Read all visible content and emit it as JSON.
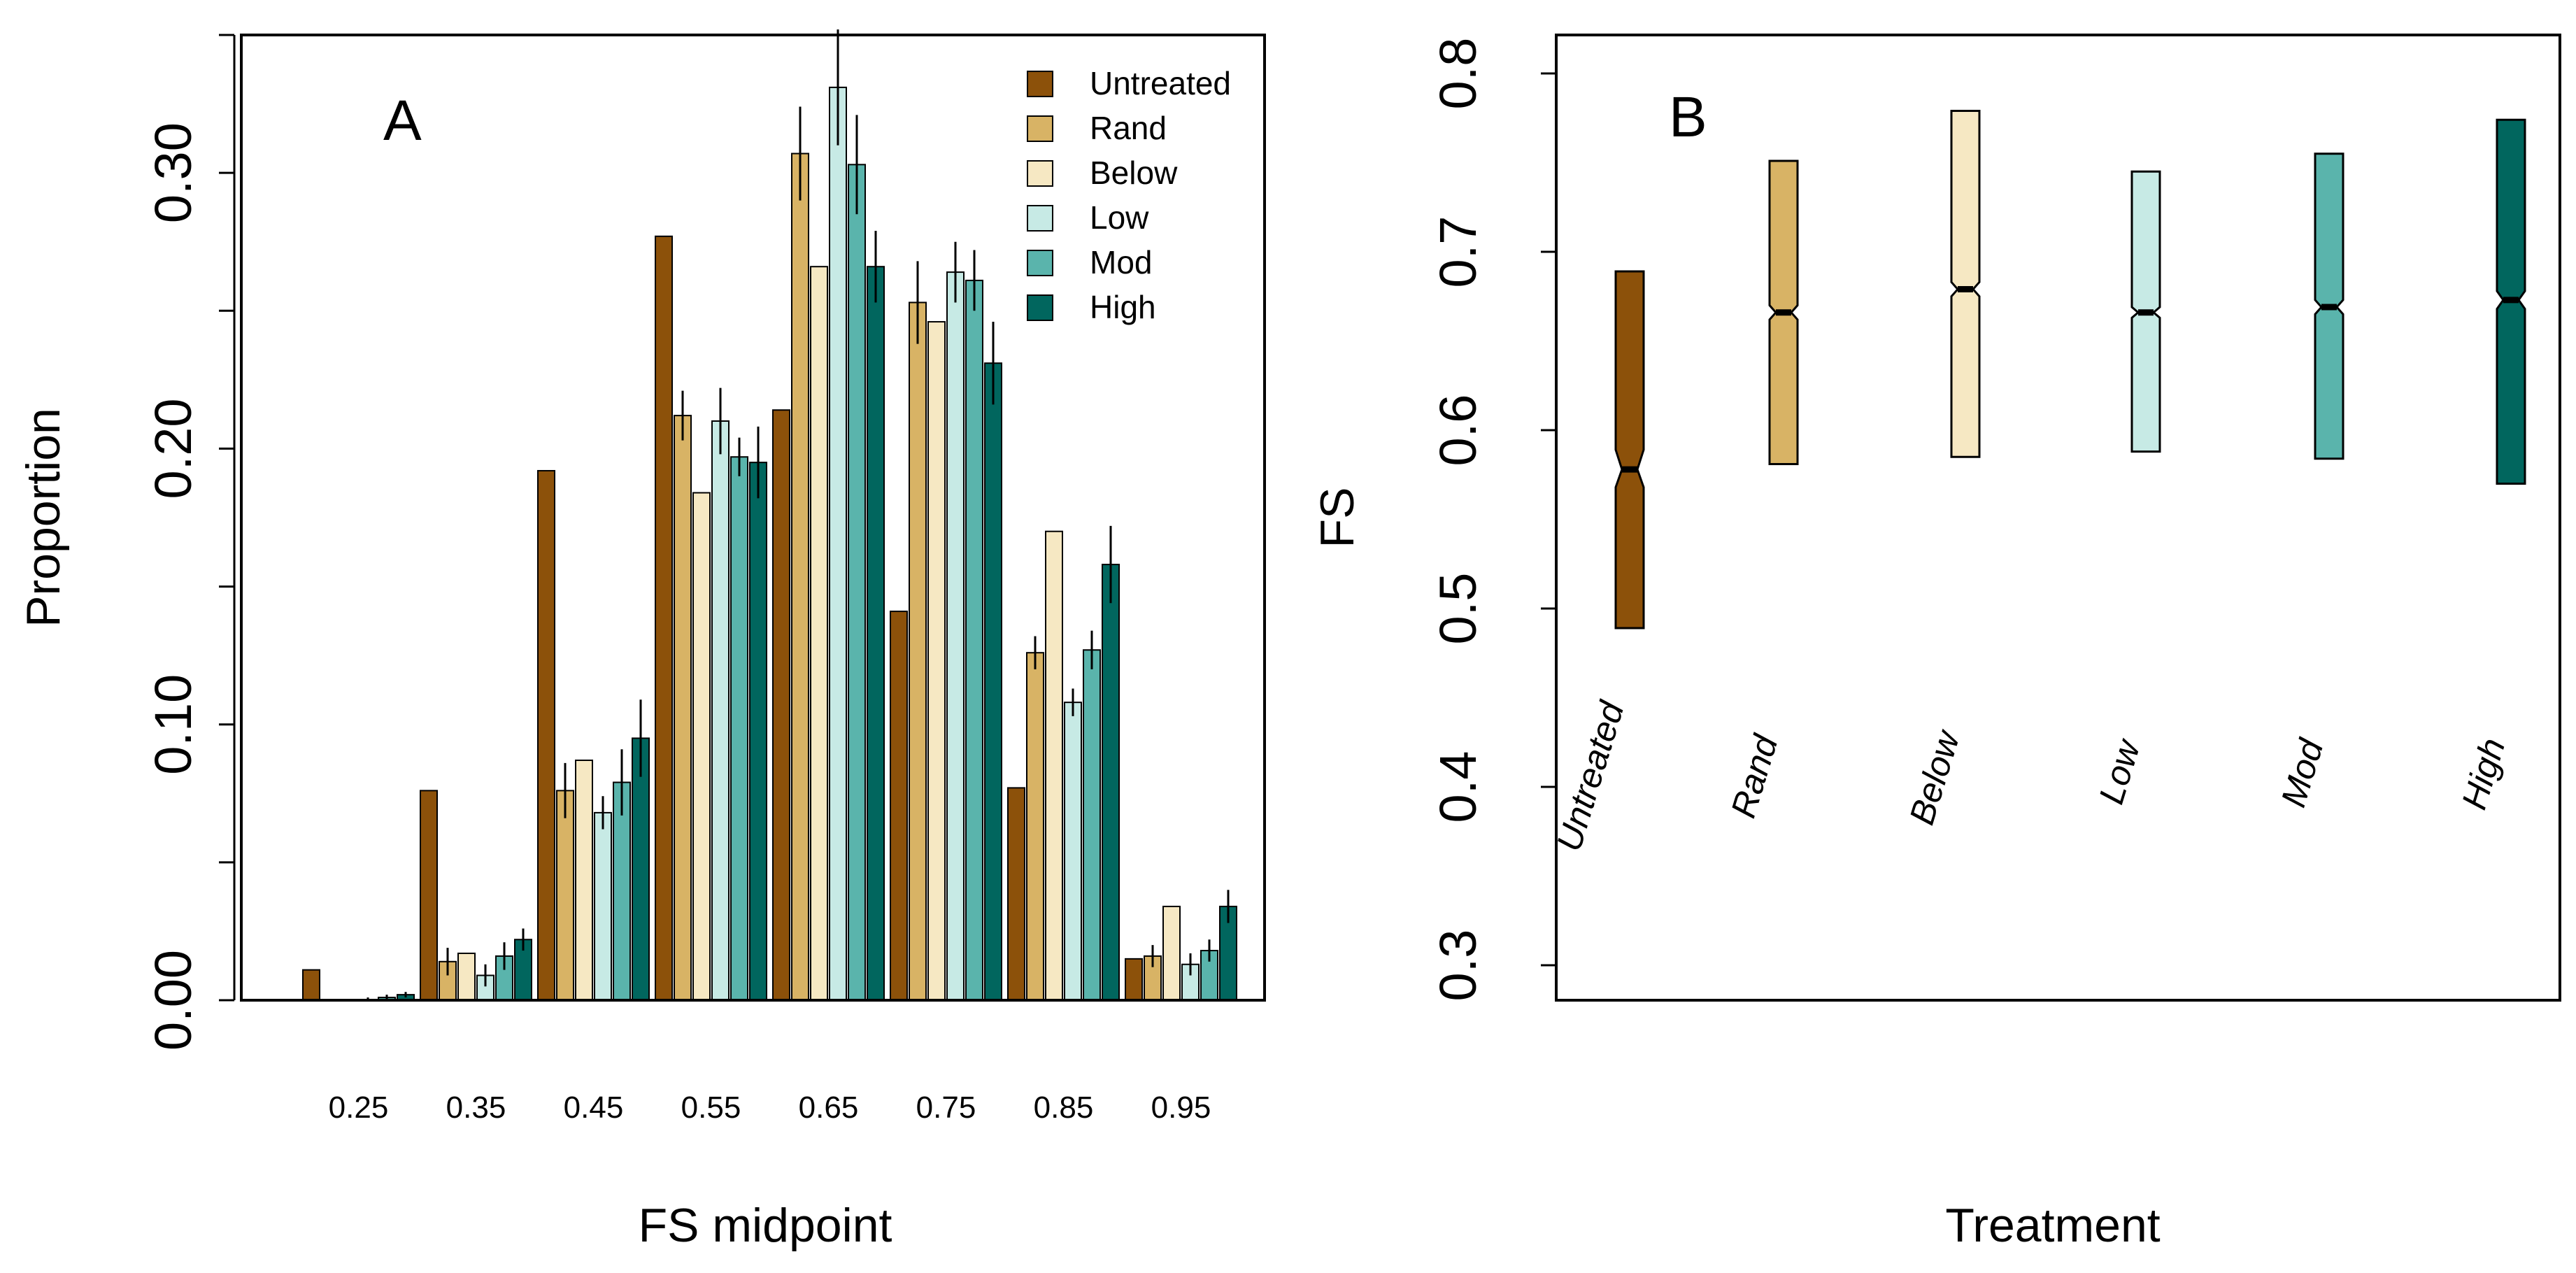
{
  "figure": {
    "colors": {
      "Untreated": "#8c510a",
      "Rand": "#d8b365",
      "Below": "#f6e8c3",
      "Low": "#c7eae5",
      "Mod": "#5ab4ac",
      "High": "#01665e"
    }
  },
  "chart_data": [
    {
      "type": "bar",
      "panel_label": "A",
      "xlabel": "FS midpoint",
      "ylabel": "Proportion",
      "ylim": [
        0,
        0.35
      ],
      "yticks": [
        0,
        0.1,
        0.2,
        0.3
      ],
      "ytick_labels": [
        "0.00",
        "0.10",
        "0.20",
        "0.30"
      ],
      "categories": [
        "0.25",
        "0.35",
        "0.45",
        "0.55",
        "0.65",
        "0.75",
        "0.85",
        "0.95"
      ],
      "legend": [
        "Untreated",
        "Rand",
        "Below",
        "Low",
        "Mod",
        "High"
      ],
      "legend_position": "top-right",
      "series": [
        {
          "name": "Untreated",
          "values": [
            0.011,
            0.076,
            0.192,
            0.277,
            0.214,
            0.141,
            0.077,
            0.015
          ],
          "errors": [
            0,
            0,
            0,
            0,
            0,
            0,
            0,
            0
          ]
        },
        {
          "name": "Rand",
          "values": [
            0.0,
            0.014,
            0.076,
            0.212,
            0.307,
            0.253,
            0.126,
            0.016
          ],
          "errors": [
            0,
            0.005,
            0.01,
            0.009,
            0.017,
            0.015,
            0.006,
            0.004
          ]
        },
        {
          "name": "Below",
          "values": [
            0.0,
            0.017,
            0.087,
            0.184,
            0.266,
            0.246,
            0.17,
            0.034
          ],
          "errors": [
            0,
            0,
            0,
            0,
            0,
            0,
            0,
            0
          ]
        },
        {
          "name": "Low",
          "values": [
            0.0,
            0.009,
            0.068,
            0.21,
            0.331,
            0.264,
            0.108,
            0.013
          ],
          "errors": [
            0.001,
            0.004,
            0.006,
            0.012,
            0.021,
            0.011,
            0.005,
            0.004
          ]
        },
        {
          "name": "Mod",
          "values": [
            0.001,
            0.016,
            0.079,
            0.197,
            0.303,
            0.261,
            0.127,
            0.018
          ],
          "errors": [
            0.001,
            0.005,
            0.012,
            0.007,
            0.018,
            0.011,
            0.007,
            0.004
          ]
        },
        {
          "name": "High",
          "values": [
            0.002,
            0.022,
            0.095,
            0.195,
            0.266,
            0.231,
            0.158,
            0.034
          ],
          "errors": [
            0.001,
            0.004,
            0.014,
            0.013,
            0.013,
            0.015,
            0.014,
            0.006
          ]
        }
      ]
    },
    {
      "type": "box",
      "panel_label": "B",
      "xlabel": "Treatment",
      "ylabel": "FS",
      "ylim": [
        0.28,
        0.82
      ],
      "yticks": [
        0.3,
        0.4,
        0.5,
        0.6,
        0.7,
        0.8
      ],
      "ytick_labels": [
        "0.3",
        "0.4",
        "0.5",
        "0.6",
        "0.7",
        "0.8"
      ],
      "categories": [
        "Untreated",
        "Rand",
        "Below",
        "Low",
        "Mod",
        "High"
      ],
      "boxes": [
        {
          "name": "Untreated",
          "q1": 0.489,
          "median": 0.578,
          "q3": 0.689,
          "notch_low": 0.568,
          "notch_high": 0.589
        },
        {
          "name": "Rand",
          "q1": 0.581,
          "median": 0.666,
          "q3": 0.751,
          "notch_low": 0.662,
          "notch_high": 0.67
        },
        {
          "name": "Below",
          "q1": 0.585,
          "median": 0.679,
          "q3": 0.779,
          "notch_low": 0.675,
          "notch_high": 0.683
        },
        {
          "name": "Low",
          "q1": 0.588,
          "median": 0.666,
          "q3": 0.745,
          "notch_low": 0.663,
          "notch_high": 0.669
        },
        {
          "name": "Mod",
          "q1": 0.584,
          "median": 0.669,
          "q3": 0.755,
          "notch_low": 0.665,
          "notch_high": 0.673
        },
        {
          "name": "High",
          "q1": 0.57,
          "median": 0.673,
          "q3": 0.774,
          "notch_low": 0.668,
          "notch_high": 0.678
        }
      ]
    }
  ]
}
